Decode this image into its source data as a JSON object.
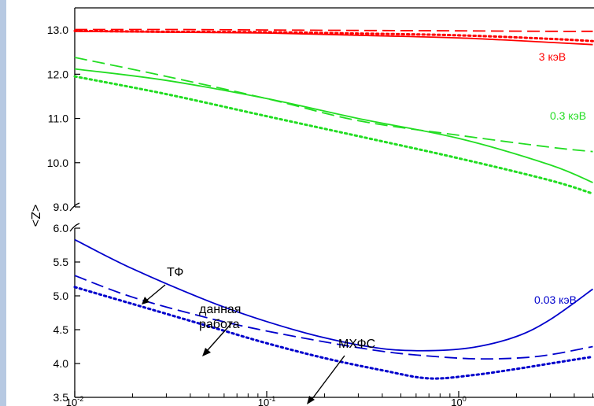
{
  "chart_data": {
    "type": "line",
    "ylabel": "<Z>",
    "x_scale": "log",
    "xlim": [
      0.01,
      5
    ],
    "x_ticks": [
      {
        "value": 0.01,
        "base": "10",
        "exp": "-2"
      },
      {
        "value": 0.1,
        "base": "10",
        "exp": "-1"
      },
      {
        "value": 1,
        "base": "10",
        "exp": "0"
      }
    ],
    "upper_panel": {
      "ylim": [
        9.0,
        13.5
      ],
      "y_ticks": [
        "9.0",
        "10.0",
        "11.0",
        "12.0",
        "13.0"
      ],
      "y_tick_values": [
        9,
        10,
        11,
        12,
        13
      ]
    },
    "lower_panel": {
      "ylim": [
        3.5,
        6.0
      ],
      "y_ticks": [
        "3.5",
        "4.0",
        "4.5",
        "5.0",
        "5.5",
        "6.0"
      ],
      "y_tick_values": [
        3.5,
        4.0,
        4.5,
        5.0,
        5.5,
        6.0
      ]
    },
    "axis_break": true,
    "line_styles": [
      "solid",
      "dashed",
      "dotted"
    ],
    "groups": [
      {
        "label": "3 кэВ",
        "color": "#ff0000",
        "panel": "upper",
        "x": [
          0.01,
          0.03,
          0.1,
          0.3,
          1,
          3,
          5
        ],
        "solid": [
          12.97,
          12.95,
          12.93,
          12.88,
          12.82,
          12.72,
          12.67
        ],
        "dashed": [
          13.01,
          13.01,
          13.0,
          12.99,
          12.98,
          12.97,
          12.97
        ],
        "dotted": [
          12.98,
          12.96,
          12.95,
          12.92,
          12.88,
          12.8,
          12.75
        ]
      },
      {
        "label": "0.3 кэВ",
        "color": "#22dd22",
        "panel": "upper",
        "x": [
          0.01,
          0.03,
          0.1,
          0.3,
          1,
          3,
          5
        ],
        "solid": [
          12.12,
          11.86,
          11.45,
          11.0,
          10.55,
          9.95,
          9.55
        ],
        "dashed": [
          12.38,
          11.95,
          11.45,
          10.95,
          10.62,
          10.35,
          10.25
        ],
        "dotted": [
          11.95,
          11.55,
          11.05,
          10.6,
          10.1,
          9.6,
          9.3
        ]
      },
      {
        "label": "0.03 кэВ",
        "color": "#0000cc",
        "panel": "lower",
        "x": [
          0.01,
          0.02,
          0.05,
          0.1,
          0.2,
          0.4,
          0.7,
          1.2,
          2,
          3,
          5
        ],
        "solid": [
          5.83,
          5.4,
          4.92,
          4.62,
          4.38,
          4.22,
          4.19,
          4.24,
          4.4,
          4.65,
          5.1
        ],
        "dashed": [
          5.3,
          4.98,
          4.67,
          4.48,
          4.32,
          4.18,
          4.11,
          4.07,
          4.08,
          4.13,
          4.25
        ],
        "dotted": [
          5.13,
          4.88,
          4.55,
          4.3,
          4.08,
          3.9,
          3.78,
          3.83,
          3.92,
          4.0,
          4.1
        ]
      }
    ],
    "annotations": [
      {
        "text": "ТФ",
        "target": "solid"
      },
      {
        "text": "данная",
        "target": "dashed"
      },
      {
        "text": "работа",
        "target": "dashed"
      },
      {
        "text": "МХФС",
        "target": "dotted"
      }
    ]
  }
}
